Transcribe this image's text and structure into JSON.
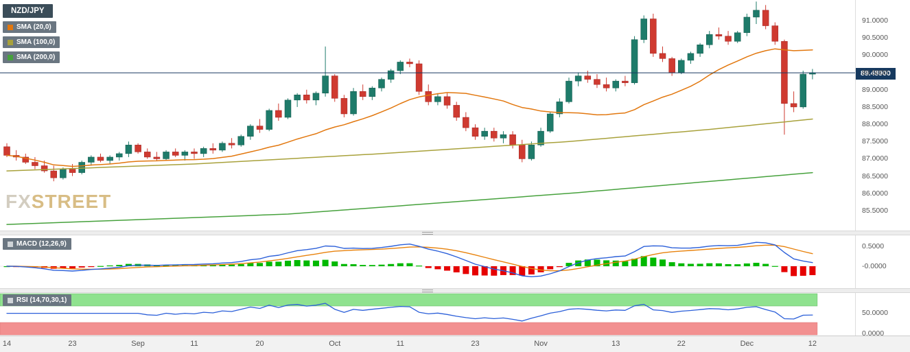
{
  "header": {
    "symbol_badge": "NZD/JPY",
    "sma_badges": [
      {
        "label": "SMA (20,0)",
        "color": "#e2770e"
      },
      {
        "label": "SMA (100,0)",
        "color": "#a8a13b"
      },
      {
        "label": "SMA (200,0)",
        "color": "#46a13c"
      }
    ]
  },
  "watermark": {
    "fx": "FX",
    "street": "STREET"
  },
  "price_axis": {
    "current_price_label": "89.48900"
  },
  "macd_panel": {
    "label": "MACD (12,26,9)",
    "axis_labels": [
      {
        "text": "0.5000",
        "value": 0.5
      },
      {
        "text": "-0.0000",
        "value": 0
      }
    ]
  },
  "rsi_panel": {
    "label": "RSI (14,70,30,1)",
    "axis_labels": [
      {
        "text": "50.0000",
        "value": 50
      },
      {
        "text": "0.0000",
        "value": 0
      }
    ]
  },
  "chart_data": {
    "type": "candlestick",
    "symbol": "NZD/JPY",
    "current_price": 89.489,
    "ylim": [
      84.94,
      91.6
    ],
    "up_color": "#1e7b6a",
    "up_border": "#145a4e",
    "down_color": "#cf3a30",
    "down_border": "#a02525",
    "price_line_color": "#16395f",
    "price_ticks": [
      91.0,
      90.5,
      90.0,
      89.5,
      89.0,
      88.5,
      88.0,
      87.5,
      87.0,
      86.5,
      86.0,
      85.5
    ],
    "x_tick_labels": [
      {
        "i": 0,
        "t": "14"
      },
      {
        "i": 7,
        "t": "23"
      },
      {
        "i": 14,
        "t": "Sep"
      },
      {
        "i": 20,
        "t": "11"
      },
      {
        "i": 27,
        "t": "20"
      },
      {
        "i": 35,
        "t": "Oct"
      },
      {
        "i": 42,
        "t": "11"
      },
      {
        "i": 50,
        "t": "23"
      },
      {
        "i": 57,
        "t": "Nov"
      },
      {
        "i": 65,
        "t": "13"
      },
      {
        "i": 72,
        "t": "22"
      },
      {
        "i": 79,
        "t": "Dec"
      },
      {
        "i": 86,
        "t": "12"
      }
    ],
    "candles": [
      [
        87.35,
        87.45,
        87.05,
        87.1
      ],
      [
        87.1,
        87.25,
        86.95,
        87.05
      ],
      [
        87.05,
        87.15,
        86.85,
        86.9
      ],
      [
        86.9,
        87.05,
        86.7,
        86.8
      ],
      [
        86.8,
        86.95,
        86.6,
        86.65
      ],
      [
        86.65,
        86.8,
        86.35,
        86.45
      ],
      [
        86.45,
        86.75,
        86.4,
        86.7
      ],
      [
        86.7,
        86.85,
        86.5,
        86.6
      ],
      [
        86.6,
        86.95,
        86.55,
        86.9
      ],
      [
        86.9,
        87.1,
        86.8,
        87.05
      ],
      [
        87.05,
        87.15,
        86.9,
        86.95
      ],
      [
        86.95,
        87.1,
        86.85,
        87.05
      ],
      [
        87.05,
        87.2,
        86.95,
        87.15
      ],
      [
        87.15,
        87.5,
        87.05,
        87.4
      ],
      [
        87.4,
        87.45,
        87.15,
        87.2
      ],
      [
        87.2,
        87.3,
        87.0,
        87.05
      ],
      [
        87.05,
        87.2,
        86.95,
        87.0
      ],
      [
        87.0,
        87.25,
        86.95,
        87.2
      ],
      [
        87.2,
        87.3,
        87.05,
        87.1
      ],
      [
        87.1,
        87.25,
        86.95,
        87.2
      ],
      [
        87.2,
        87.3,
        87.0,
        87.15
      ],
      [
        87.15,
        87.35,
        87.05,
        87.3
      ],
      [
        87.3,
        87.45,
        87.15,
        87.25
      ],
      [
        87.25,
        87.5,
        87.2,
        87.45
      ],
      [
        87.45,
        87.6,
        87.3,
        87.4
      ],
      [
        87.4,
        87.7,
        87.35,
        87.65
      ],
      [
        87.65,
        88.0,
        87.55,
        87.95
      ],
      [
        87.95,
        88.15,
        87.75,
        87.85
      ],
      [
        87.85,
        88.45,
        87.8,
        88.4
      ],
      [
        88.4,
        88.6,
        88.1,
        88.2
      ],
      [
        88.2,
        88.75,
        88.15,
        88.7
      ],
      [
        88.7,
        88.9,
        88.5,
        88.85
      ],
      [
        88.85,
        89.0,
        88.6,
        88.7
      ],
      [
        88.7,
        88.95,
        88.55,
        88.9
      ],
      [
        88.9,
        90.25,
        88.8,
        89.4
      ],
      [
        89.4,
        89.45,
        88.65,
        88.75
      ],
      [
        88.75,
        88.85,
        88.2,
        88.3
      ],
      [
        88.3,
        89.05,
        88.25,
        88.95
      ],
      [
        88.95,
        89.15,
        88.7,
        88.8
      ],
      [
        88.8,
        89.1,
        88.7,
        89.05
      ],
      [
        89.05,
        89.35,
        88.95,
        89.3
      ],
      [
        89.3,
        89.6,
        89.2,
        89.55
      ],
      [
        89.55,
        89.85,
        89.45,
        89.8
      ],
      [
        89.8,
        89.9,
        89.65,
        89.75
      ],
      [
        89.75,
        89.85,
        88.85,
        88.95
      ],
      [
        88.95,
        89.15,
        88.55,
        88.65
      ],
      [
        88.65,
        88.9,
        88.55,
        88.8
      ],
      [
        88.8,
        88.9,
        88.45,
        88.55
      ],
      [
        88.55,
        88.65,
        88.1,
        88.2
      ],
      [
        88.2,
        88.35,
        87.8,
        87.9
      ],
      [
        87.9,
        88.0,
        87.55,
        87.65
      ],
      [
        87.65,
        87.9,
        87.55,
        87.8
      ],
      [
        87.8,
        87.9,
        87.5,
        87.6
      ],
      [
        87.6,
        87.8,
        87.45,
        87.7
      ],
      [
        87.7,
        87.8,
        87.3,
        87.4
      ],
      [
        87.4,
        87.55,
        86.9,
        87.0
      ],
      [
        87.0,
        87.5,
        86.95,
        87.4
      ],
      [
        87.4,
        87.9,
        87.35,
        87.8
      ],
      [
        87.8,
        88.35,
        87.75,
        88.3
      ],
      [
        88.3,
        88.75,
        88.2,
        88.65
      ],
      [
        88.65,
        89.35,
        88.6,
        89.25
      ],
      [
        89.25,
        89.5,
        89.1,
        89.4
      ],
      [
        89.4,
        89.55,
        89.2,
        89.3
      ],
      [
        89.3,
        89.45,
        89.05,
        89.15
      ],
      [
        89.15,
        89.35,
        88.95,
        89.05
      ],
      [
        89.05,
        89.3,
        88.95,
        89.25
      ],
      [
        89.25,
        89.4,
        89.1,
        89.2
      ],
      [
        89.2,
        90.55,
        89.15,
        90.45
      ],
      [
        90.45,
        91.15,
        90.35,
        91.05
      ],
      [
        91.05,
        91.2,
        89.95,
        90.05
      ],
      [
        90.05,
        90.25,
        89.8,
        89.9
      ],
      [
        89.9,
        89.95,
        89.4,
        89.5
      ],
      [
        89.5,
        89.9,
        89.45,
        89.85
      ],
      [
        89.85,
        90.1,
        89.75,
        90.05
      ],
      [
        90.05,
        90.35,
        89.95,
        90.3
      ],
      [
        90.3,
        90.7,
        90.2,
        90.6
      ],
      [
        90.6,
        90.8,
        90.45,
        90.55
      ],
      [
        90.55,
        90.7,
        90.3,
        90.4
      ],
      [
        90.4,
        90.7,
        90.35,
        90.65
      ],
      [
        90.65,
        91.2,
        90.55,
        91.1
      ],
      [
        91.1,
        91.55,
        90.9,
        91.3
      ],
      [
        91.3,
        91.45,
        90.75,
        90.85
      ],
      [
        90.85,
        90.95,
        90.3,
        90.4
      ],
      [
        90.4,
        90.45,
        87.7,
        88.6
      ],
      [
        88.6,
        88.95,
        88.35,
        88.5
      ],
      [
        88.5,
        89.55,
        88.45,
        89.45
      ],
      [
        89.45,
        89.6,
        89.3,
        89.49
      ]
    ],
    "overlays": [
      {
        "name": "SMA(20)",
        "type": "sma",
        "period": 20,
        "color": "#e2770e"
      },
      {
        "name": "SMA(100)",
        "type": "points",
        "color": "#a8a13b",
        "points": [
          [
            0,
            86.65
          ],
          [
            20,
            86.85
          ],
          [
            40,
            87.15
          ],
          [
            60,
            87.5
          ],
          [
            75,
            87.85
          ],
          [
            86,
            88.15
          ]
        ]
      },
      {
        "name": "SMA(200)",
        "type": "points",
        "color": "#46a13c",
        "points": [
          [
            0,
            85.1
          ],
          [
            30,
            85.4
          ],
          [
            60,
            86.0
          ],
          [
            86,
            86.6
          ]
        ]
      }
    ],
    "indicators": {
      "macd": {
        "params": [
          12,
          26,
          9
        ],
        "ylim": [
          -0.55,
          0.78
        ],
        "line_color": "#2b5fd9",
        "signal_color": "#e8820c",
        "hist_up": "#00b800",
        "hist_down": "#e60000"
      },
      "rsi": {
        "params": [
          14,
          70,
          30,
          1
        ],
        "ylim": [
          0,
          100
        ],
        "overbought": 70,
        "oversold": 30,
        "line_color": "#2b5fd9",
        "overbought_fill": "#8fe28f",
        "oversold_fill": "#f29090"
      }
    }
  }
}
